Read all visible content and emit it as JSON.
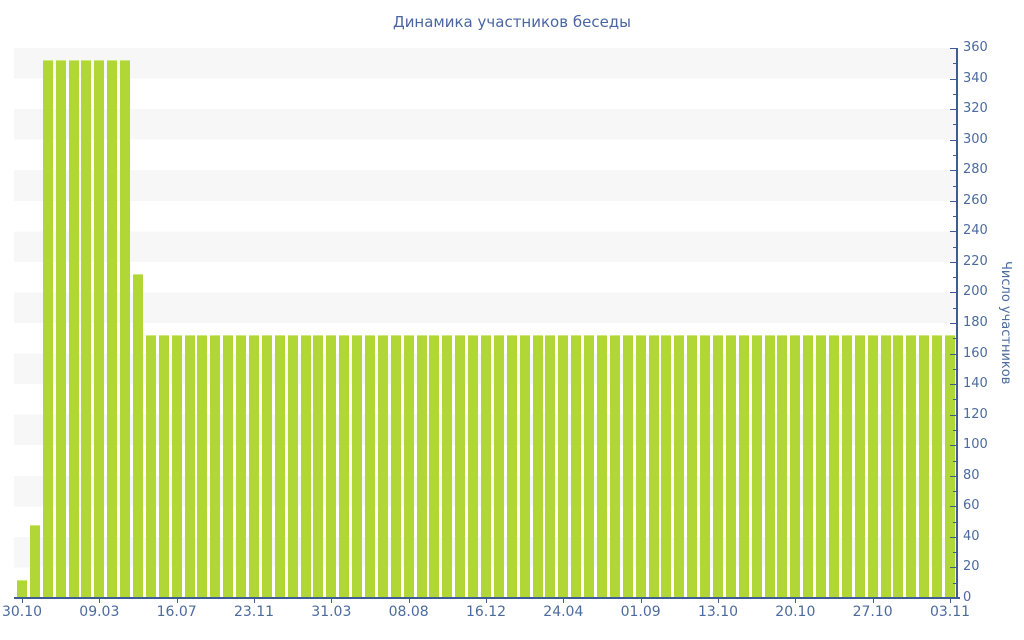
{
  "title": "Динамика участников беседы",
  "y_axis": {
    "label": "Число участников",
    "min": 0,
    "max": 360,
    "major_step": 20,
    "minor_step": 10
  },
  "x_axis": {
    "tick_labels": [
      "30.10",
      "09.03",
      "16.07",
      "23.11",
      "31.03",
      "08.08",
      "16.12",
      "24.04",
      "01.09",
      "13.10",
      "20.10",
      "27.10",
      "03.11"
    ],
    "bars_per_tick": 6
  },
  "colors": {
    "bar": "#b1d737",
    "bar_edge": "#cfe87c",
    "axis": "#3e5b94",
    "text": "#4c6b9d",
    "title": "#4a66a0",
    "stripe": "#f7f7f7",
    "background": "#ffffff"
  },
  "chart_data": {
    "type": "bar",
    "title": "Динамика участников беседы",
    "xlabel": "",
    "ylabel": "Число участников",
    "ylim": [
      0,
      360
    ],
    "grid": "horizontal-stripes",
    "legend": "none",
    "x_tick_labels": [
      "30.10",
      "09.03",
      "16.07",
      "23.11",
      "31.03",
      "08.08",
      "16.12",
      "24.04",
      "01.09",
      "13.10",
      "20.10",
      "27.10",
      "03.11"
    ],
    "tick_every_n_bars": 6,
    "bar_count": 73,
    "values": [
      12,
      48,
      352,
      352,
      352,
      352,
      352,
      352,
      352,
      212,
      172,
      172,
      172,
      172,
      172,
      172,
      172,
      172,
      172,
      172,
      172,
      172,
      172,
      172,
      172,
      172,
      172,
      172,
      172,
      172,
      172,
      172,
      172,
      172,
      172,
      172,
      172,
      172,
      172,
      172,
      172,
      172,
      172,
      172,
      172,
      172,
      172,
      172,
      172,
      172,
      172,
      172,
      172,
      172,
      172,
      172,
      172,
      172,
      172,
      172,
      172,
      172,
      172,
      172,
      172,
      172,
      172,
      172,
      172,
      172,
      172,
      172,
      172
    ]
  }
}
